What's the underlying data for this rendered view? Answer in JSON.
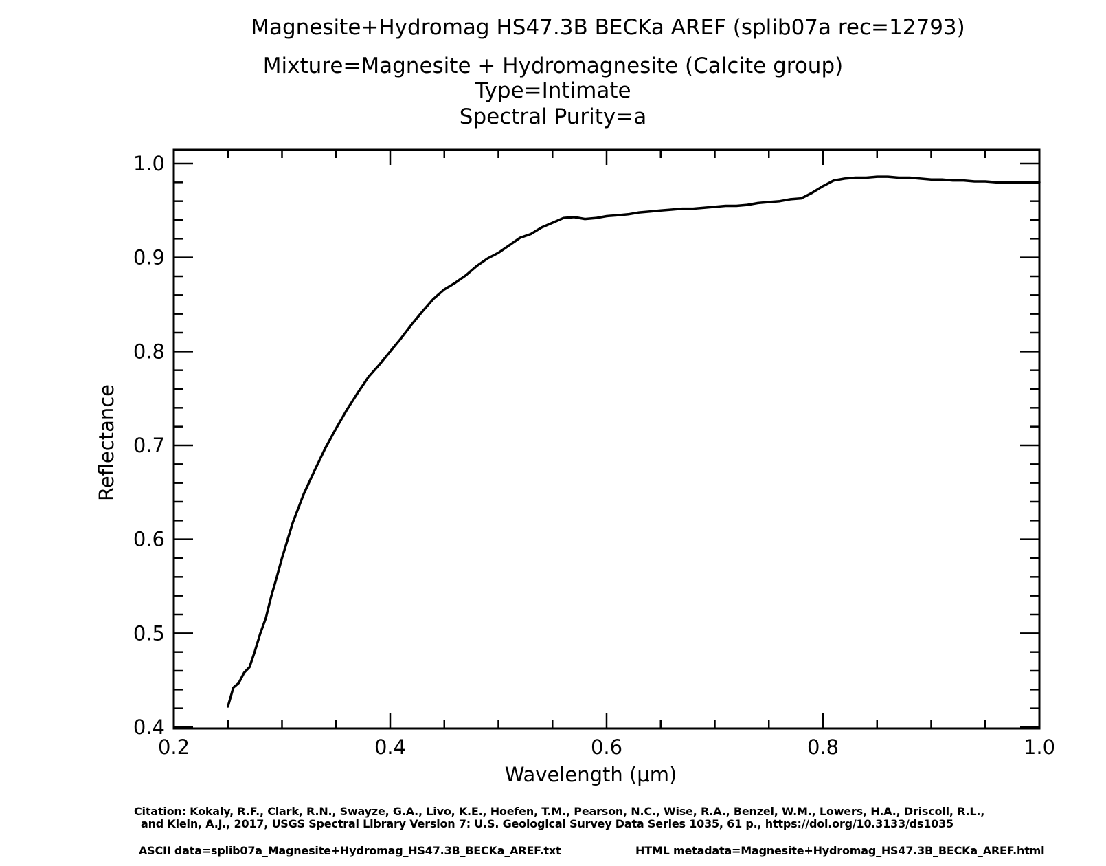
{
  "titles": {
    "line1": "Magnesite+Hydromag HS47.3B     BECKa AREF    (splib07a rec=12793)",
    "line2": "Mixture=Magnesite + Hydromagnesite (Calcite group)",
    "line3": "Type=Intimate",
    "line4": "Spectral Purity=a"
  },
  "footer": {
    "citation_line1": "Citation: Kokaly, R.F., Clark, R.N., Swayze, G.A., Livo, K.E., Hoefen, T.M., Pearson, N.C., Wise, R.A., Benzel, W.M., Lowers, H.A., Driscoll, R.L.,",
    "citation_line2": "and Klein, A.J., 2017, USGS Spectral Library Version 7: U.S. Geological Survey Data Series 1035, 61 p., https://doi.org/10.3133/ds1035",
    "ascii": "ASCII data=splib07a_Magnesite+Hydromag_HS47.3B_BECKa_AREF.txt",
    "html": "HTML metadata=Magnesite+Hydromag_HS47.3B_BECKa_AREF.html"
  },
  "chart_data": {
    "type": "line",
    "xlabel": "Wavelength (μm)",
    "ylabel": "Reflectance",
    "xlim": [
      0.2,
      1.0
    ],
    "ylim": [
      0.4,
      1.0
    ],
    "xticks": [
      "0.2",
      "0.4",
      "0.6",
      "0.8",
      "1.0"
    ],
    "yticks": [
      "0.4",
      "0.5",
      "0.6",
      "0.7",
      "0.8",
      "0.9",
      "1.0"
    ],
    "grid": false,
    "series": [
      {
        "color": "#000000",
        "x": [
          0.25,
          0.255,
          0.26,
          0.265,
          0.27,
          0.275,
          0.28,
          0.285,
          0.29,
          0.295,
          0.3,
          0.31,
          0.32,
          0.33,
          0.34,
          0.35,
          0.36,
          0.37,
          0.38,
          0.39,
          0.4,
          0.41,
          0.42,
          0.43,
          0.44,
          0.45,
          0.46,
          0.47,
          0.48,
          0.49,
          0.5,
          0.51,
          0.52,
          0.53,
          0.54,
          0.55,
          0.56,
          0.57,
          0.58,
          0.59,
          0.6,
          0.61,
          0.62,
          0.63,
          0.64,
          0.65,
          0.66,
          0.67,
          0.68,
          0.69,
          0.7,
          0.71,
          0.72,
          0.73,
          0.74,
          0.75,
          0.76,
          0.77,
          0.78,
          0.79,
          0.8,
          0.81,
          0.82,
          0.83,
          0.84,
          0.85,
          0.86,
          0.87,
          0.88,
          0.89,
          0.9,
          0.91,
          0.92,
          0.93,
          0.94,
          0.95,
          0.96,
          0.97,
          0.98,
          0.99,
          1.0
        ],
        "y": [
          0.422,
          0.442,
          0.447,
          0.458,
          0.464,
          0.481,
          0.5,
          0.516,
          0.539,
          0.559,
          0.58,
          0.618,
          0.648,
          0.673,
          0.697,
          0.718,
          0.738,
          0.756,
          0.773,
          0.786,
          0.8,
          0.814,
          0.829,
          0.843,
          0.856,
          0.866,
          0.873,
          0.881,
          0.891,
          0.899,
          0.905,
          0.913,
          0.921,
          0.925,
          0.932,
          0.937,
          0.942,
          0.943,
          0.941,
          0.942,
          0.944,
          0.945,
          0.946,
          0.948,
          0.949,
          0.95,
          0.951,
          0.952,
          0.952,
          0.953,
          0.954,
          0.955,
          0.955,
          0.956,
          0.958,
          0.959,
          0.96,
          0.962,
          0.963,
          0.969,
          0.976,
          0.982,
          0.984,
          0.985,
          0.985,
          0.986,
          0.986,
          0.985,
          0.985,
          0.984,
          0.983,
          0.983,
          0.982,
          0.982,
          0.981,
          0.981,
          0.98,
          0.98,
          0.98,
          0.98,
          0.98
        ]
      }
    ]
  }
}
